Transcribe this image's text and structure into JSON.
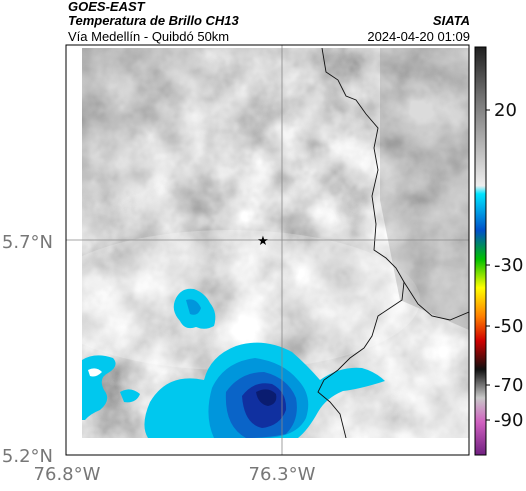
{
  "header": {
    "satellite": "GOES-EAST",
    "product": "Temperatura de Brillo CH13",
    "organization": "SIATA",
    "route": "Vía Medellín - Quibdó 50km",
    "datetime": "2024-04-20 01:09"
  },
  "map": {
    "lon_ticks": [
      {
        "value": -76.8,
        "label": "76.8°W"
      },
      {
        "value": -76.3,
        "label": "76.3°W"
      }
    ],
    "lat_ticks": [
      {
        "value": 5.7,
        "label": "5.7°N"
      },
      {
        "value": 5.2,
        "label": "5.2°N"
      }
    ],
    "marker": {
      "lon": -76.32,
      "lat": 5.7,
      "symbol": "★"
    },
    "colors": {
      "cold_cyan": "#00c8ee",
      "deep_blue": "#1030a0",
      "gridline": "#888888"
    }
  },
  "colorbar": {
    "ticks": [
      {
        "value": 20,
        "label": "20"
      },
      {
        "value": -30,
        "label": "-30"
      },
      {
        "value": -50,
        "label": "-50"
      },
      {
        "value": -70,
        "label": "-70"
      },
      {
        "value": -90,
        "label": "-90"
      }
    ]
  }
}
